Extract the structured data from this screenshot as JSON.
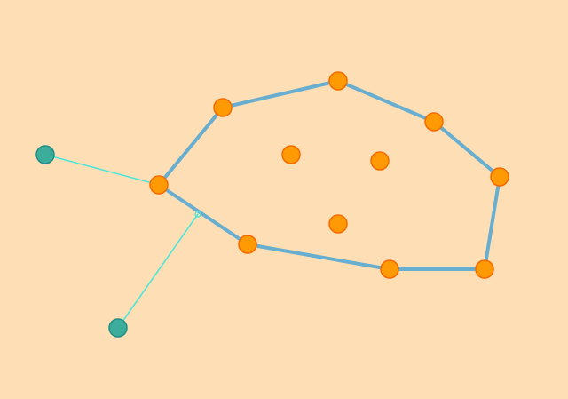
{
  "colors": {
    "background": "#fedeb4",
    "hull_edge": "#67aed0",
    "point_fill": "#ff9a05",
    "point_stroke": "#f56a00",
    "tool_fill": "#3cac9b",
    "tool_stroke": "#1f8e87",
    "tool_line": "#4fe6d8"
  },
  "game": {
    "points": [
      "hull-point",
      "hull-point",
      "hull-point",
      "hull-point",
      "hull-point",
      "hull-point",
      "hull-point",
      "hull-point",
      "interior-point",
      "interior-point",
      "interior-point"
    ],
    "hull_order": [
      0,
      1,
      2,
      3,
      4,
      5,
      6,
      7
    ],
    "tool_handles": [
      "handle-a",
      "handle-b"
    ]
  }
}
